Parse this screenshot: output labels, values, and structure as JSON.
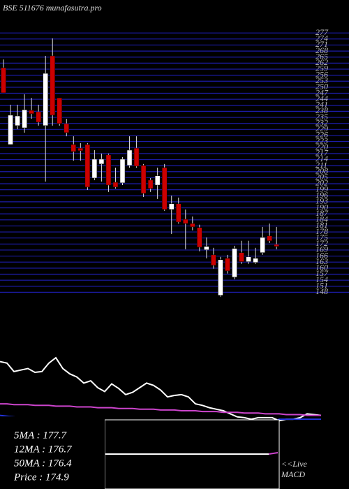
{
  "chart_data": {
    "type": "candlestick",
    "title": "BSE 511676 munafasutra.pro",
    "open": [
      259.7,
      221.5,
      230.9,
      229.8,
      238.5,
      237.8,
      230.9,
      265.6,
      244.7,
      231.9,
      221.5,
      219.7,
      221.5,
      204.8,
      211.8,
      216.3,
      202.7,
      202.4,
      211.1,
      219.7,
      211.1,
      203.8,
      201.3,
      210.0,
      189.2,
      192.0,
      184.3,
      182.2,
      180.2,
      169.1,
      166.6,
      146.5,
      164.9,
      155.5,
      167.7,
      163.2,
      162.8,
      167.7,
      176.0,
      171.8
    ],
    "high": [
      263.8,
      241.3,
      241.3,
      246.5,
      244.7,
      241.3,
      265.6,
      274.3,
      244.7,
      234.3,
      225.6,
      222.2,
      222.2,
      218.7,
      217.0,
      217.0,
      210.0,
      215.2,
      225.6,
      225.6,
      211.8,
      204.8,
      210.0,
      211.8,
      196.1,
      195.1,
      189.2,
      185.7,
      181.6,
      175.3,
      170.1,
      165.6,
      166.6,
      171.1,
      173.6,
      173.6,
      170.1,
      180.5,
      182.2,
      180.5
    ],
    "low": [
      247.2,
      221.5,
      229.1,
      227.4,
      234.3,
      230.9,
      203.1,
      230.9,
      230.9,
      225.6,
      213.5,
      213.5,
      198.9,
      203.8,
      203.1,
      197.9,
      199.6,
      201.3,
      210.0,
      210.0,
      195.4,
      197.9,
      194.4,
      188.5,
      177.0,
      182.2,
      169.4,
      178.8,
      168.4,
      164.9,
      159.7,
      145.8,
      157.3,
      154.5,
      162.1,
      162.1,
      162.1,
      166.6,
      172.5,
      169.4
    ],
    "close": [
      247.2,
      236.1,
      235.7,
      238.8,
      236.8,
      232.6,
      256.9,
      236.1,
      231.9,
      227.4,
      218.0,
      218.4,
      200.3,
      214.2,
      214.2,
      201.3,
      200.3,
      214.2,
      218.7,
      210.7,
      197.2,
      199.6,
      205.9,
      189.2,
      192.0,
      182.9,
      182.2,
      180.5,
      170.4,
      170.8,
      161.4,
      164.2,
      158.6,
      169.8,
      163.2,
      165.6,
      164.9,
      175.3,
      173.6,
      170.8
    ],
    "up_color": "#ffffff",
    "down_color": "#cc0000",
    "ylim": [
      145,
      279.5
    ],
    "yticks": [
      148,
      151,
      154,
      157,
      160,
      163,
      166,
      169,
      172,
      175,
      178,
      181,
      184,
      187,
      190,
      193,
      196,
      199,
      202,
      205,
      208,
      211,
      214,
      217,
      220,
      223,
      226,
      229,
      232,
      235,
      238,
      241,
      244,
      247,
      250,
      253,
      256,
      259,
      262,
      265,
      268,
      271,
      274,
      277
    ],
    "grid": true,
    "grid_color": "#1c1ca8",
    "indicator": {
      "ylim": [
        0,
        100
      ],
      "series": [
        {
          "color": "#ffffff",
          "values": [
            84,
            82,
            71,
            73,
            75,
            70,
            71,
            82,
            89,
            75,
            68,
            64,
            56,
            59,
            50,
            45,
            55,
            49,
            41,
            44,
            50,
            56,
            53,
            47,
            38,
            40,
            41,
            38,
            29,
            27,
            24,
            22,
            20,
            16,
            12,
            11,
            9,
            11,
            11,
            11,
            7,
            9,
            9,
            11,
            16,
            15,
            14
          ]
        },
        {
          "color": "#cc44cc",
          "values": [
            29,
            29,
            28,
            28,
            28,
            27,
            27,
            27,
            26,
            26,
            26,
            25,
            25,
            25,
            24,
            24,
            24,
            23,
            23,
            23,
            22,
            22,
            22,
            21,
            21,
            21,
            20,
            20,
            20,
            19,
            19,
            19,
            18,
            18,
            18,
            17,
            17,
            17,
            16,
            16,
            16,
            15,
            15,
            15,
            14,
            14,
            14
          ]
        },
        {
          "color": "#2233dd",
          "values": [
            14,
            13,
            12,
            11,
            10,
            9,
            8,
            7,
            6,
            6,
            5,
            5,
            5,
            5,
            5,
            5,
            5,
            5,
            5,
            5,
            5,
            5,
            5,
            5,
            5,
            5,
            5,
            5,
            5,
            5,
            5,
            5,
            5,
            5,
            5,
            5,
            5,
            5,
            5,
            5,
            9,
            9,
            9,
            9,
            9,
            9,
            9
          ]
        }
      ]
    },
    "ma_box": [
      "5MA : 177.7",
      "12MA : 176.7",
      "50MA : 176.4",
      "Price : 174.9"
    ],
    "live_label": [
      "<<Live",
      "MACD"
    ]
  }
}
